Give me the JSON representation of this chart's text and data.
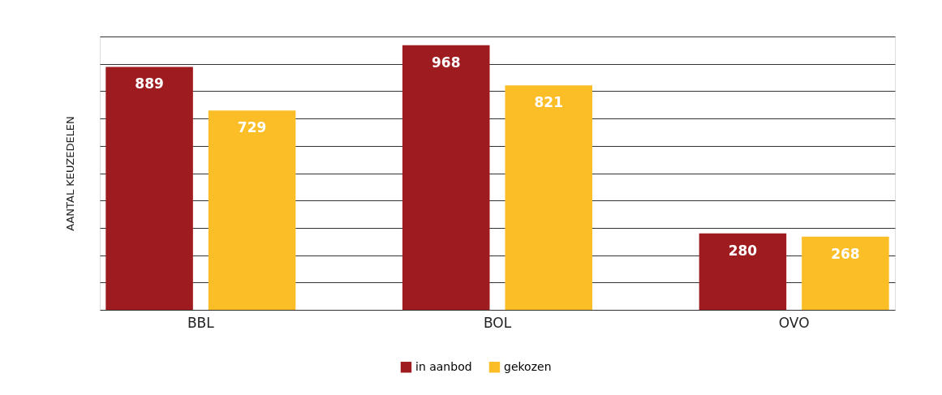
{
  "chart_data": {
    "type": "bar",
    "ylabel": "AANTAL KEUZEDELEN",
    "categories": [
      "BBL",
      "BOL",
      "OVO"
    ],
    "series": [
      {
        "name": "in aanbod",
        "color": "#9e1b20",
        "values": [
          889,
          968,
          280
        ]
      },
      {
        "name": "gekozen",
        "color": "#fbbe27",
        "values": [
          729,
          821,
          268
        ]
      }
    ],
    "ylim": [
      0,
      1000
    ],
    "yticks": [
      {
        "value": 0,
        "label": null
      },
      {
        "value": 100,
        "label": null
      },
      {
        "value": 200,
        "label": null
      },
      {
        "value": 300,
        "label": null
      },
      {
        "value": 400,
        "label": null
      },
      {
        "value": 500,
        "label": null
      },
      {
        "value": 600,
        "label": null
      },
      {
        "value": 700,
        "label": null
      },
      {
        "value": 800,
        "label": null
      },
      {
        "value": 900,
        "label": null
      },
      {
        "value": 1000,
        "label": null
      }
    ],
    "grid": "y",
    "legend": "bottom",
    "data_labels": true,
    "tick_labels": "x"
  }
}
